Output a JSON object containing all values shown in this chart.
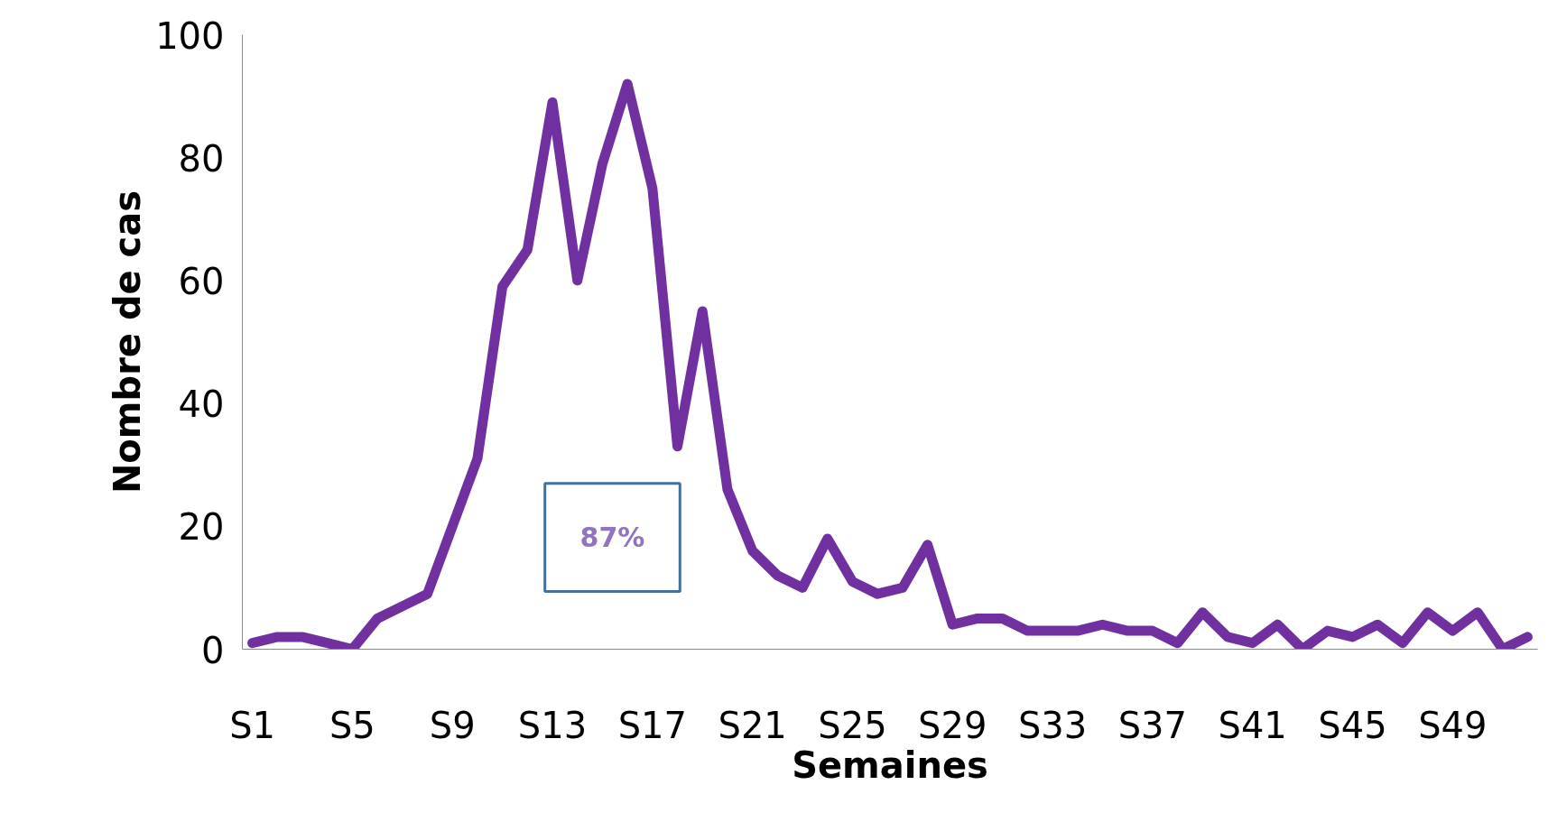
{
  "chart_data": {
    "type": "line",
    "xlabel": "Semaines",
    "ylabel": "Nombre de cas",
    "categories": [
      "S1",
      null,
      null,
      null,
      "S5",
      null,
      null,
      null,
      "S9",
      null,
      null,
      null,
      "S13",
      null,
      null,
      null,
      "S17",
      null,
      null,
      null,
      "S21",
      null,
      null,
      null,
      "S25",
      null,
      null,
      null,
      "S29",
      null,
      null,
      null,
      "S33",
      null,
      null,
      null,
      "S37",
      null,
      null,
      null,
      "S41",
      null,
      null,
      null,
      "S45",
      null,
      null,
      null,
      "S49",
      null,
      null,
      null
    ],
    "series": [
      {
        "color": "#7030a0",
        "values": [
          1,
          2,
          2,
          1,
          0,
          5,
          7,
          9,
          20,
          31,
          59,
          65,
          89,
          60,
          79,
          92,
          75,
          33,
          55,
          26,
          16,
          12,
          10,
          18,
          11,
          9,
          10,
          17,
          4,
          5,
          5,
          3,
          3,
          3,
          4,
          3,
          3,
          1,
          6,
          2,
          1,
          4,
          0,
          3,
          2,
          4,
          1,
          6,
          3,
          6,
          0,
          2
        ]
      }
    ],
    "ylim": [
      0,
      100
    ],
    "yticks": [
      0,
      20,
      40,
      60,
      80,
      100
    ],
    "grid": false,
    "marker": "none",
    "line_style": "solid",
    "annotations": [
      "87%"
    ]
  }
}
